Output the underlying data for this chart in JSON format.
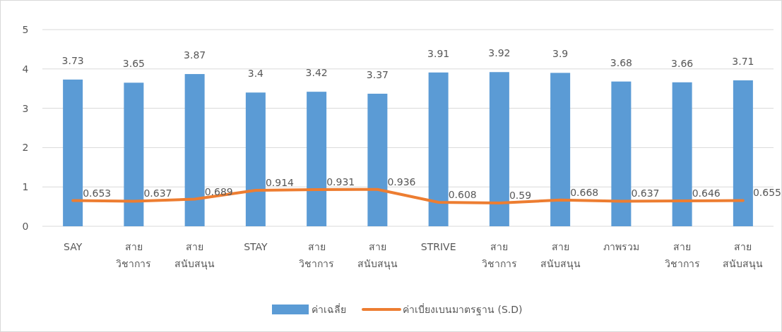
{
  "chart_data": {
    "type": "bar",
    "categories": [
      "SAY",
      "สาย วิชาการ",
      "สาย สนับสนุน",
      "STAY",
      "สาย วิชาการ",
      "สาย สนับสนุน",
      "STRIVE",
      "สาย วิชาการ",
      "สาย สนับสนุน",
      "ภาพรวม",
      "สาย วิชาการ",
      "สาย สนับสนุน"
    ],
    "series": [
      {
        "name": "ค่าเฉลี่ย",
        "color": "#5b9bd5",
        "values": [
          3.73,
          3.65,
          3.87,
          3.4,
          3.42,
          3.37,
          3.91,
          3.92,
          3.9,
          3.68,
          3.66,
          3.71
        ]
      },
      {
        "name": "ค่าเบี่ยงเบนมาตรฐาน (S.D)",
        "type": "line",
        "color": "#ed7d31",
        "values": [
          0.653,
          0.637,
          0.689,
          0.914,
          0.931,
          0.936,
          0.608,
          0.59,
          0.668,
          0.637,
          0.646,
          0.655
        ]
      }
    ],
    "ylim": [
      0,
      5
    ],
    "yticks": [
      0,
      1,
      2,
      3,
      4,
      5
    ],
    "grid": "y",
    "legend": "bottom",
    "data_labels": true,
    "marker": "none"
  }
}
